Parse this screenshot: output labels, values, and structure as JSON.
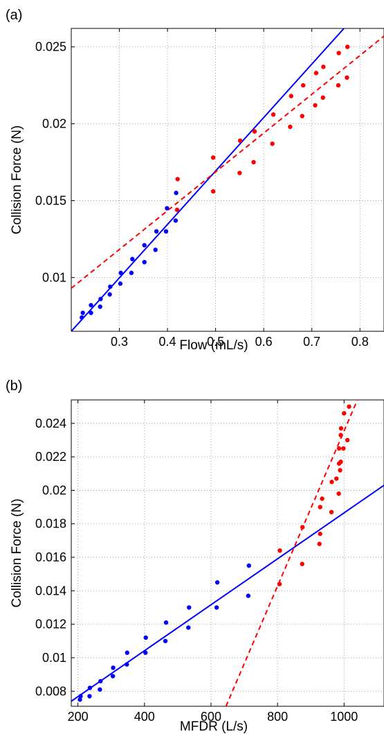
{
  "chart_data": [
    {
      "panel_label": "(a)",
      "type": "scatter",
      "xlabel": "Flow (mL/s)",
      "ylabel": "Collision Force (N)",
      "xlim": [
        0.2,
        0.85
      ],
      "ylim": [
        0.0065,
        0.0262
      ],
      "xticks": [
        0.3,
        0.4,
        0.5,
        0.6,
        0.7,
        0.8
      ],
      "xtick_labels": [
        "0.3",
        "0.4",
        "0.5",
        "0.6",
        "0.7",
        "0.8"
      ],
      "yticks": [
        0.01,
        0.015,
        0.02,
        0.025
      ],
      "ytick_labels": [
        "0.01",
        "0.015",
        "0.02",
        "0.025"
      ],
      "grid": true,
      "series": [
        {
          "color": "#0000ff",
          "kind": "points",
          "points": [
            [
              0.222,
              0.0074
            ],
            [
              0.224,
              0.0077
            ],
            [
              0.241,
              0.0077
            ],
            [
              0.241,
              0.0082
            ],
            [
              0.26,
              0.0081
            ],
            [
              0.261,
              0.0086
            ],
            [
              0.28,
              0.0089
            ],
            [
              0.281,
              0.0094
            ],
            [
              0.302,
              0.0096
            ],
            [
              0.303,
              0.0103
            ],
            [
              0.325,
              0.0103
            ],
            [
              0.327,
              0.0112
            ],
            [
              0.352,
              0.011
            ],
            [
              0.352,
              0.0121
            ],
            [
              0.375,
              0.0118
            ],
            [
              0.377,
              0.013
            ],
            [
              0.397,
              0.013
            ],
            [
              0.399,
              0.0145
            ],
            [
              0.417,
              0.0137
            ],
            [
              0.418,
              0.0155
            ]
          ]
        },
        {
          "color": "#ff0000",
          "kind": "points",
          "points": [
            [
              0.42,
              0.0144
            ],
            [
              0.421,
              0.0164
            ],
            [
              0.495,
              0.0156
            ],
            [
              0.495,
              0.0178
            ],
            [
              0.55,
              0.0168
            ],
            [
              0.551,
              0.0189
            ],
            [
              0.579,
              0.0175
            ],
            [
              0.581,
              0.0195
            ],
            [
              0.618,
              0.0187
            ],
            [
              0.62,
              0.0206
            ],
            [
              0.655,
              0.0198
            ],
            [
              0.657,
              0.0218
            ],
            [
              0.68,
              0.0205
            ],
            [
              0.682,
              0.0225
            ],
            [
              0.707,
              0.0212
            ],
            [
              0.709,
              0.0233
            ],
            [
              0.723,
              0.0217
            ],
            [
              0.724,
              0.0237
            ],
            [
              0.755,
              0.0225
            ],
            [
              0.756,
              0.0246
            ],
            [
              0.773,
              0.023
            ],
            [
              0.774,
              0.025
            ]
          ]
        },
        {
          "color": "#0000ff",
          "kind": "fit-line",
          "style": "solid",
          "points": [
            [
              0.2,
              0.0065
            ],
            [
              0.83,
              0.0284
            ]
          ]
        },
        {
          "color": "#ff0000",
          "kind": "fit-line",
          "style": "dashed",
          "points": [
            [
              0.2,
              0.0093
            ],
            [
              0.85,
              0.0257
            ]
          ]
        }
      ]
    },
    {
      "panel_label": "(b)",
      "type": "scatter",
      "xlabel": "MFDR (L/s)",
      "ylabel": "Collision Force (N)",
      "xlim": [
        180,
        1120
      ],
      "ylim": [
        0.0071,
        0.0254
      ],
      "xticks": [
        200,
        400,
        600,
        800,
        1000
      ],
      "xtick_labels": [
        "200",
        "400",
        "600",
        "800",
        "1000"
      ],
      "yticks": [
        0.008,
        0.01,
        0.012,
        0.014,
        0.016,
        0.018,
        0.02,
        0.022,
        0.024
      ],
      "ytick_labels": [
        "0.008",
        "0.01",
        "0.012",
        "0.014",
        "0.016",
        "0.018",
        "0.02",
        "0.022",
        "0.024"
      ],
      "grid": true,
      "series": [
        {
          "color": "#0000ff",
          "kind": "points",
          "points": [
            [
              206,
              0.0075
            ],
            [
              208,
              0.0077
            ],
            [
              235,
              0.0077
            ],
            [
              236,
              0.0082
            ],
            [
              266,
              0.0081
            ],
            [
              268,
              0.0086
            ],
            [
              305,
              0.0089
            ],
            [
              306,
              0.0094
            ],
            [
              347,
              0.0096
            ],
            [
              348,
              0.0103
            ],
            [
              403,
              0.0103
            ],
            [
              404,
              0.0112
            ],
            [
              463,
              0.011
            ],
            [
              465,
              0.0121
            ],
            [
              532,
              0.0118
            ],
            [
              534,
              0.013
            ],
            [
              617,
              0.013
            ],
            [
              619,
              0.0145
            ],
            [
              712,
              0.0137
            ],
            [
              714,
              0.0155
            ]
          ]
        },
        {
          "color": "#ff0000",
          "kind": "points",
          "points": [
            [
              806,
              0.0144
            ],
            [
              807,
              0.0164
            ],
            [
              874,
              0.0156
            ],
            [
              875,
              0.0178
            ],
            [
              926,
              0.0168
            ],
            [
              928,
              0.0174
            ],
            [
              928,
              0.019
            ],
            [
              934,
              0.0195
            ],
            [
              962,
              0.0187
            ],
            [
              963,
              0.0205
            ],
            [
              977,
              0.0207
            ],
            [
              984,
              0.0198
            ],
            [
              985,
              0.0216
            ],
            [
              985,
              0.0225
            ],
            [
              988,
              0.0212
            ],
            [
              990,
              0.0217
            ],
            [
              990,
              0.0233
            ],
            [
              991,
              0.0237
            ],
            [
              998,
              0.0225
            ],
            [
              1000,
              0.0246
            ],
            [
              1010,
              0.023
            ],
            [
              1015,
              0.025
            ]
          ]
        },
        {
          "color": "#0000ff",
          "kind": "fit-line",
          "style": "solid",
          "points": [
            [
              180,
              0.0074
            ],
            [
              1120,
              0.0203
            ]
          ]
        },
        {
          "color": "#ff0000",
          "kind": "fit-line",
          "style": "dashed",
          "points": [
            [
              645,
              0.0071
            ],
            [
              1040,
              0.0254
            ]
          ]
        }
      ]
    }
  ]
}
